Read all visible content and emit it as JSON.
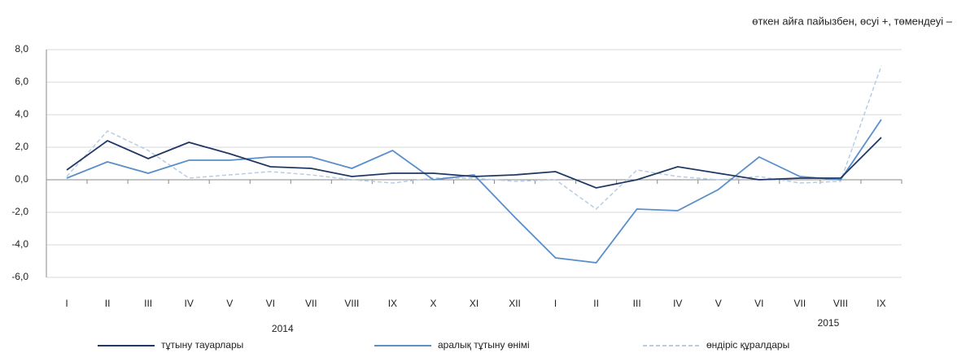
{
  "chart_data": {
    "type": "line",
    "subtitle": "өткен айға пайызбен, өсуі +, төмендеуі –",
    "categories": [
      "I",
      "II",
      "III",
      "IV",
      "V",
      "VI",
      "VII",
      "VIII",
      "IX",
      "X",
      "XI",
      "XII",
      "I",
      "II",
      "III",
      "IV",
      "V",
      "VI",
      "VII",
      "VIII",
      "IX"
    ],
    "year_labels": [
      "2014",
      "2015"
    ],
    "series": [
      {
        "name": "тұтыну тауарлары",
        "color": "#1f3864",
        "dash": false,
        "values": [
          0.6,
          2.4,
          1.3,
          2.3,
          1.6,
          0.8,
          0.7,
          0.2,
          0.4,
          0.4,
          0.2,
          0.3,
          0.5,
          -0.5,
          0.0,
          0.8,
          0.4,
          0.0,
          0.1,
          0.1,
          2.6
        ]
      },
      {
        "name": "аралық тұтыну өнімі",
        "color": "#5b8fc9",
        "dash": false,
        "values": [
          0.1,
          1.1,
          0.4,
          1.2,
          1.2,
          1.4,
          1.4,
          0.7,
          1.8,
          0.0,
          0.3,
          -2.3,
          -4.8,
          -5.1,
          -1.8,
          -1.9,
          -0.6,
          1.4,
          0.2,
          0.0,
          3.7
        ]
      },
      {
        "name": "өндіріс құралдары",
        "color": "#b8cce4",
        "dash": true,
        "values": [
          0.2,
          3.0,
          1.8,
          0.1,
          0.3,
          0.5,
          0.3,
          0.0,
          -0.2,
          0.1,
          0.1,
          -0.1,
          0.0,
          -1.8,
          0.6,
          0.2,
          0.0,
          0.2,
          -0.2,
          -0.1,
          7.0
        ]
      }
    ],
    "ylim": [
      -6,
      8
    ],
    "yticks": [
      {
        "value": -6,
        "label": "-6,0"
      },
      {
        "value": -4,
        "label": "-4,0"
      },
      {
        "value": -2,
        "label": "-2,0"
      },
      {
        "value": 0,
        "label": "0,0"
      },
      {
        "value": 2,
        "label": "2,0"
      },
      {
        "value": 4,
        "label": "4,0"
      },
      {
        "value": 6,
        "label": "6,0"
      },
      {
        "value": 8,
        "label": "8,0"
      }
    ],
    "grid": true
  }
}
